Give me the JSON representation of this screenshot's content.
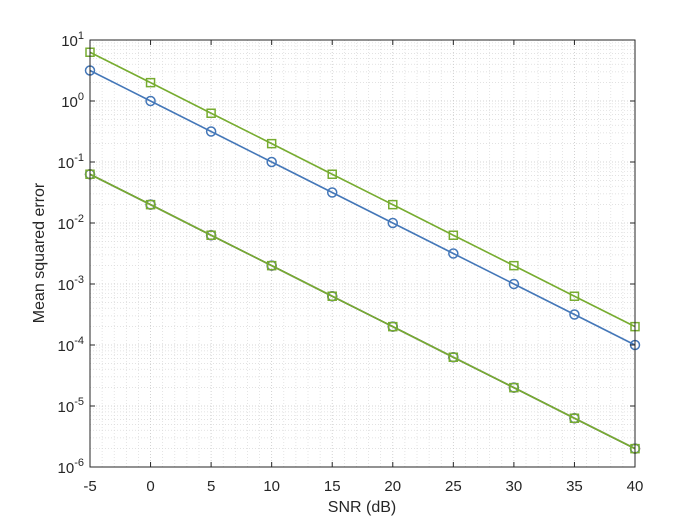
{
  "chart_data": {
    "type": "line",
    "xlabel": "SNR (dB)",
    "ylabel": "Mean squared error",
    "yscale": "log",
    "xlim": [
      -5,
      40
    ],
    "ylim_exponents": [
      -6,
      1
    ],
    "xticks": [
      -5,
      0,
      5,
      10,
      15,
      20,
      25,
      30,
      35,
      40
    ],
    "yticks": [
      {
        "base": "10",
        "exp": "-6"
      },
      {
        "base": "10",
        "exp": "-5"
      },
      {
        "base": "10",
        "exp": "-4"
      },
      {
        "base": "10",
        "exp": "-3"
      },
      {
        "base": "10",
        "exp": "-2"
      },
      {
        "base": "10",
        "exp": "-1"
      },
      {
        "base": "10",
        "exp": "0"
      },
      {
        "base": "10",
        "exp": "1"
      }
    ],
    "grid": true,
    "minor_grid": true,
    "x": [
      -5,
      0,
      5,
      10,
      15,
      20,
      25,
      30,
      35,
      40
    ],
    "series": [
      {
        "color": "#77AC30",
        "marker": "square",
        "values": [
          6.3,
          2.0,
          0.63,
          0.2,
          0.063,
          0.02,
          0.0063,
          0.002,
          0.00063,
          0.0002
        ]
      },
      {
        "color": "#4477B8",
        "marker": "circle",
        "values": [
          3.16,
          1.0,
          0.316,
          0.1,
          0.0316,
          0.01,
          0.00316,
          0.001,
          0.000316,
          0.0001
        ]
      },
      {
        "color": "#D95319",
        "marker": "circle",
        "values": [
          0.063,
          0.02,
          0.0063,
          0.002,
          0.00063,
          0.0002,
          6.3e-05,
          2e-05,
          6.3e-06,
          2e-06
        ]
      },
      {
        "color": "#4477B8",
        "marker": "circle",
        "values": [
          0.063,
          0.02,
          0.0063,
          0.002,
          0.00063,
          0.0002,
          6.3e-05,
          2e-05,
          6.3e-06,
          2e-06
        ]
      },
      {
        "color": "#77AC30",
        "marker": "square",
        "values": [
          0.063,
          0.02,
          0.0063,
          0.002,
          0.00063,
          0.0002,
          6.3e-05,
          2e-05,
          6.3e-06,
          2e-06
        ]
      }
    ]
  }
}
